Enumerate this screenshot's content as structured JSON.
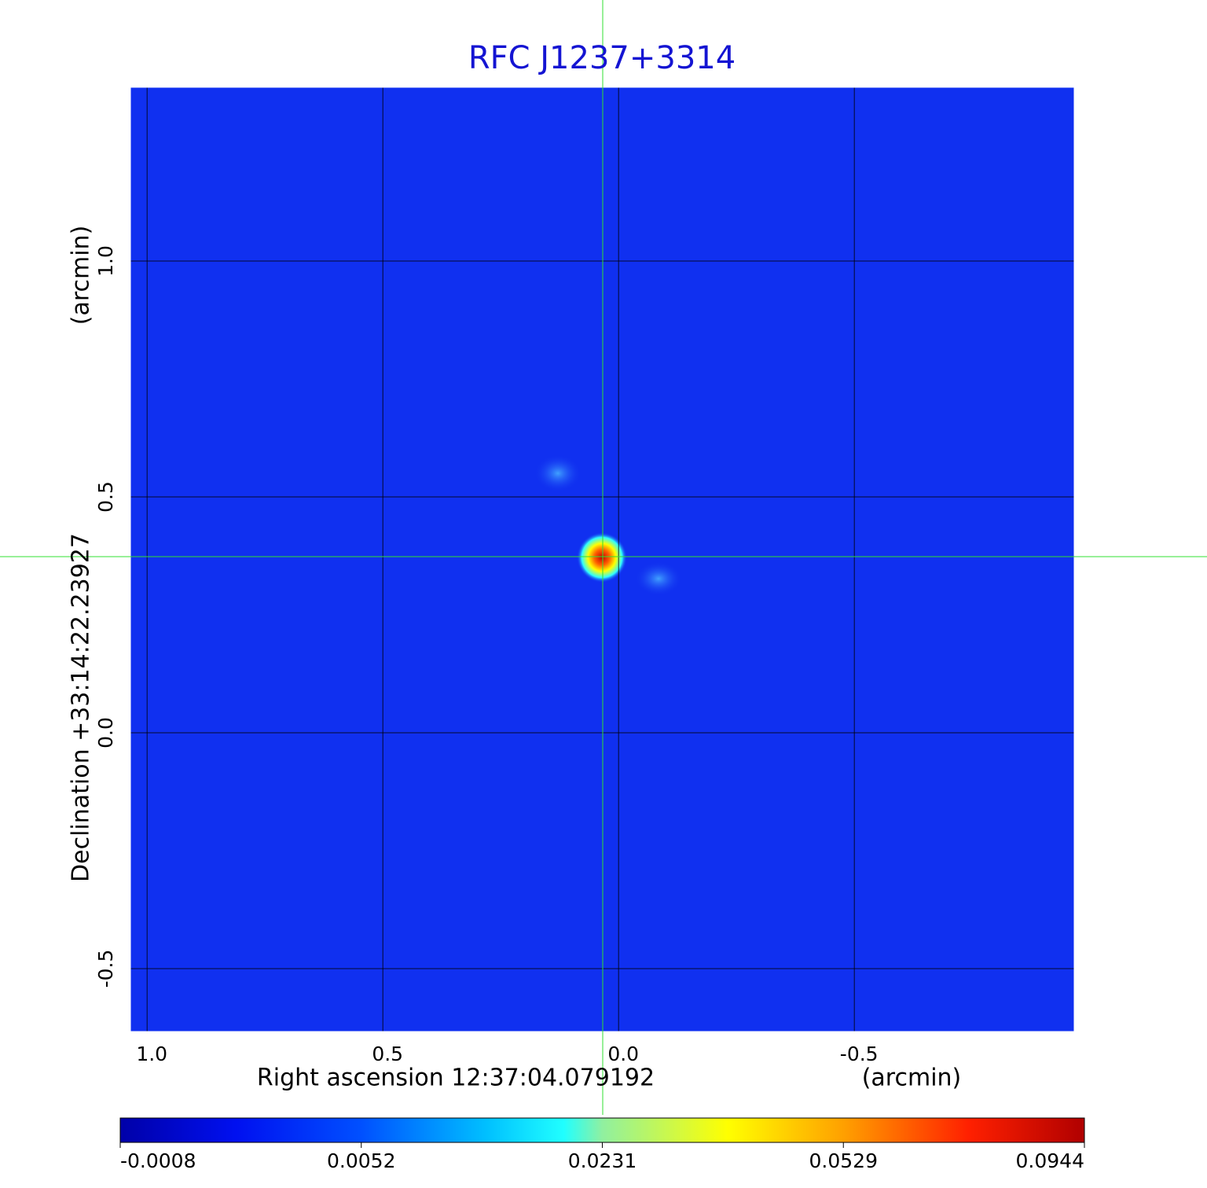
{
  "chart_data": {
    "type": "image",
    "title": "RFC J1237+3314",
    "x_label": "Right ascension  12:37:04.079192",
    "x_unit": "(arcmin)",
    "y_label": "Declination  +33:14:22.23927",
    "y_unit": "(arcmin)",
    "xlim": [
      1.037,
      -0.968
    ],
    "ylim": [
      -0.635,
      1.37
    ],
    "xticks": [
      {
        "value": 1,
        "label": "1.0"
      },
      0.5,
      {
        "value": 0,
        "label": "0.0"
      },
      -0.5
    ],
    "yticks": [
      -0.5,
      {
        "value": 0,
        "label": "0.0"
      },
      0.5,
      {
        "value": 1,
        "label": "1.0"
      }
    ],
    "grid": true,
    "colorbar_ticks": [
      -0.0008,
      0.0052,
      0.0231,
      0.0529,
      0.0944
    ]
  }
}
